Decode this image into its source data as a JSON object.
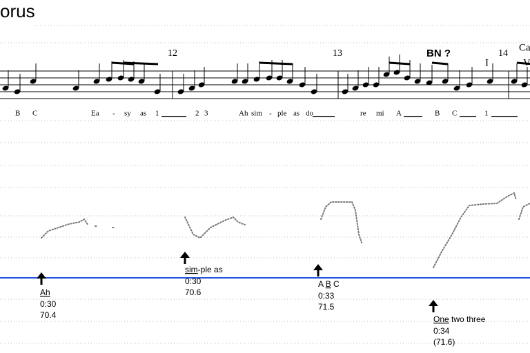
{
  "title": "orus",
  "measures": [
    {
      "text": "12"
    },
    {
      "text": "13"
    },
    {
      "text": "BN ?",
      "bold": true
    },
    {
      "text": "14"
    },
    {
      "text": "Ca"
    },
    {
      "text": "I"
    },
    {
      "text": "V"
    }
  ],
  "lyrics": [
    "B",
    "C",
    "Ea",
    "-",
    "sy",
    "as",
    "1",
    "2",
    "3",
    "Ah",
    "sim",
    "-",
    "ple",
    "as",
    "do",
    "re",
    "mi",
    "A",
    "B",
    "C",
    "1"
  ],
  "annotations": [
    {
      "parts": [
        {
          "text": "Ah",
          "underlined": true
        }
      ],
      "time": "0:30",
      "pitch": "70.4"
    },
    {
      "parts": [
        {
          "text": "sim",
          "underlined": true
        },
        {
          "text": "-ple as",
          "underlined": false
        }
      ],
      "time": "0:30",
      "pitch": "70.6"
    },
    {
      "parts": [
        {
          "text": "A ",
          "underlined": false
        },
        {
          "text": "B",
          "underlined": true
        },
        {
          "text": " C",
          "underlined": false
        }
      ],
      "time": "0:33",
      "pitch": "71.5"
    },
    {
      "parts": [
        {
          "text": "One",
          "underlined": true
        },
        {
          "text": " two three",
          "underlined": false
        }
      ],
      "time": "0:34",
      "pitch": "(71.6)"
    }
  ]
}
